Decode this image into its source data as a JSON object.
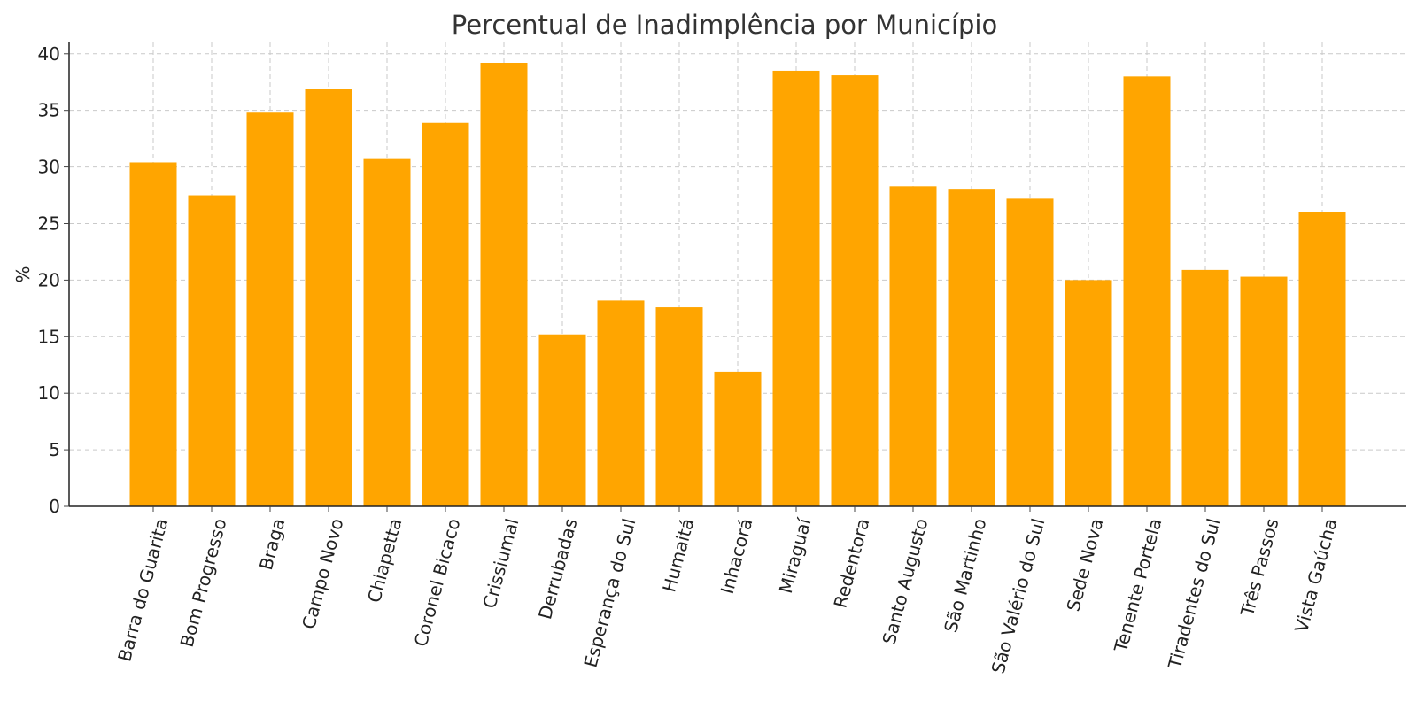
{
  "chart_data": {
    "type": "bar",
    "title": "Percentual de Inadimplência por Município",
    "xlabel": "",
    "ylabel": "%",
    "ylim": [
      0,
      41
    ],
    "yticks": [
      0,
      5,
      10,
      15,
      20,
      25,
      30,
      35,
      40
    ],
    "grid": true,
    "bar_color": "#FFA500",
    "categories": [
      "Barra do Guarita",
      "Bom Progresso",
      "Braga",
      "Campo Novo",
      "Chiapetta",
      "Coronel Bicaco",
      "Crissiumal",
      "Derrubadas",
      "Esperança do Sul",
      "Humaitá",
      "Inhacorá",
      "Miraguaí",
      "Redentora",
      "Santo Augusto",
      "São Martinho",
      "São Valério do Sul",
      "Sede Nova",
      "Tenente Portela",
      "Tiradentes do Sul",
      "Três Passos",
      "Vista Gaúcha"
    ],
    "values": [
      30.4,
      27.5,
      34.8,
      36.9,
      30.7,
      33.9,
      39.2,
      15.2,
      18.2,
      17.6,
      11.9,
      38.5,
      38.1,
      28.3,
      28.0,
      27.2,
      20.0,
      38.0,
      20.9,
      20.3,
      26.0
    ]
  }
}
